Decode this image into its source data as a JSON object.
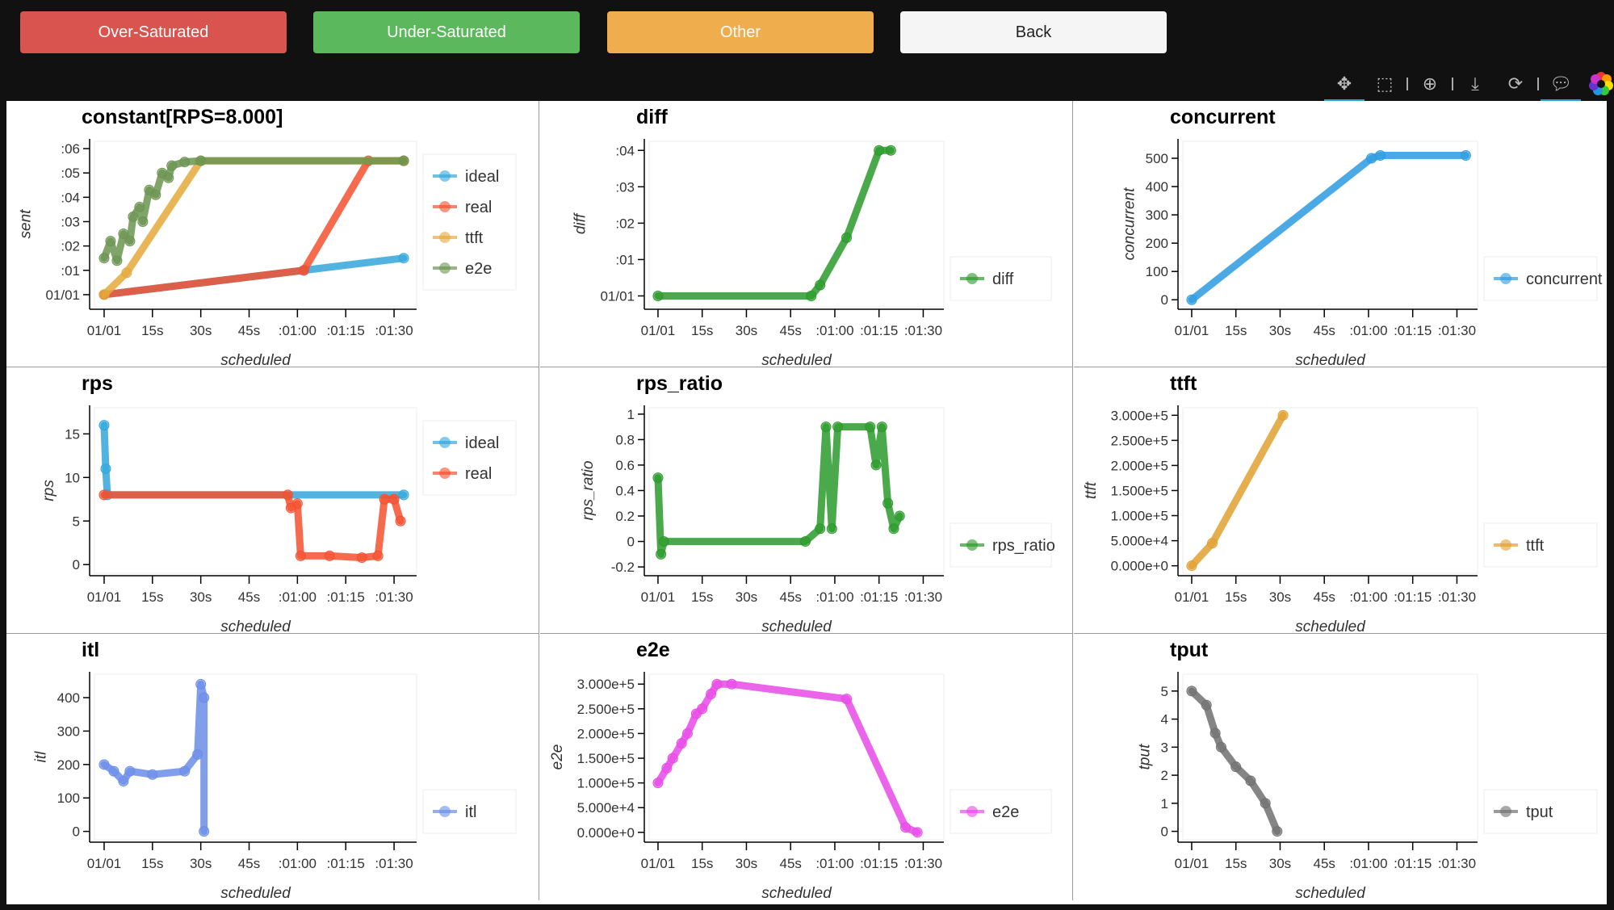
{
  "buttons": {
    "over": {
      "label": "Over-Saturated",
      "color": "#d9534f"
    },
    "under": {
      "label": "Under-Saturated",
      "color": "#5cb85c"
    },
    "other": {
      "label": "Other",
      "color": "#f0ad4e"
    },
    "back": {
      "label": "Back",
      "color": "#f5f5f5"
    }
  },
  "toolbar": [
    "pan-icon",
    "box-zoom-icon",
    "wheel-zoom-icon",
    "save-icon",
    "reset-icon",
    "hover-icon",
    "bokeh-logo"
  ],
  "chart_data": [
    {
      "type": "line",
      "title": "constant[RPS=8.000]",
      "xlabel": "scheduled",
      "ylabel": "sent",
      "ylim": [
        -0.5,
        6.3
      ],
      "yticks": [
        [
          0,
          "01/01"
        ],
        [
          1,
          ":01"
        ],
        [
          2,
          ":02"
        ],
        [
          3,
          ":03"
        ],
        [
          4,
          ":04"
        ],
        [
          5,
          ":05"
        ],
        [
          6,
          ":06"
        ]
      ],
      "series": [
        {
          "name": "ideal",
          "color": "#34a6dc",
          "points": [
            [
              0,
              0
            ],
            [
              62,
              1
            ],
            [
              93,
              1.5
            ]
          ]
        },
        {
          "name": "real",
          "color": "#f4502f",
          "points": [
            [
              0,
              0
            ],
            [
              62,
              1
            ],
            [
              82,
              5.5
            ],
            [
              93,
              5.5
            ]
          ]
        },
        {
          "name": "ttft",
          "color": "#e5a93a",
          "points": [
            [
              0,
              0
            ],
            [
              7,
              0.9
            ],
            [
              30,
              5.5
            ],
            [
              93,
              5.5
            ]
          ]
        },
        {
          "name": "e2e",
          "color": "#6b9450",
          "points": [
            [
              0,
              1.5
            ],
            [
              2,
              2.2
            ],
            [
              4,
              1.4
            ],
            [
              6,
              2.5
            ],
            [
              8,
              2.2
            ],
            [
              9,
              3.2
            ],
            [
              11,
              3.6
            ],
            [
              12,
              3.0
            ],
            [
              14,
              4.3
            ],
            [
              16,
              4.1
            ],
            [
              18,
              5.0
            ],
            [
              20,
              4.8
            ],
            [
              21,
              5.3
            ],
            [
              25,
              5.45
            ],
            [
              30,
              5.5
            ],
            [
              93,
              5.5
            ]
          ]
        }
      ]
    },
    {
      "type": "line",
      "title": "diff",
      "xlabel": "scheduled",
      "ylabel": "diff",
      "ylim": [
        -0.3,
        4.25
      ],
      "yticks": [
        [
          0,
          "01/01"
        ],
        [
          1,
          ":01"
        ],
        [
          2,
          ":02"
        ],
        [
          3,
          ":03"
        ],
        [
          4,
          ":04"
        ]
      ],
      "series": [
        {
          "name": "diff",
          "color": "#2a9a2a",
          "points": [
            [
              0,
              0
            ],
            [
              52,
              0
            ],
            [
              55,
              0.3
            ],
            [
              64,
              1.6
            ],
            [
              75,
              4
            ],
            [
              79,
              4
            ]
          ]
        }
      ]
    },
    {
      "type": "line",
      "title": "concurrent",
      "xlabel": "scheduled",
      "ylabel": "concurrent",
      "ylim": [
        -25,
        560
      ],
      "yticks": [
        [
          0,
          "0"
        ],
        [
          100,
          "100"
        ],
        [
          200,
          "200"
        ],
        [
          300,
          "300"
        ],
        [
          400,
          "400"
        ],
        [
          500,
          "500"
        ]
      ],
      "series": [
        {
          "name": "concurrent",
          "color": "#2c9be0",
          "points": [
            [
              0,
              0
            ],
            [
              61,
              500
            ],
            [
              64,
              510
            ],
            [
              93,
              510
            ]
          ]
        }
      ]
    },
    {
      "type": "line",
      "title": "rps",
      "xlabel": "scheduled",
      "ylabel": "rps",
      "ylim": [
        -1,
        18
      ],
      "yticks": [
        [
          0,
          "0"
        ],
        [
          5,
          "5"
        ],
        [
          10,
          "10"
        ],
        [
          15,
          "15"
        ]
      ],
      "series": [
        {
          "name": "ideal",
          "color": "#34a6dc",
          "points": [
            [
              0,
              16
            ],
            [
              0.5,
              11
            ],
            [
              1,
              8
            ],
            [
              93,
              8
            ]
          ]
        },
        {
          "name": "real",
          "color": "#f4502f",
          "points": [
            [
              0,
              8
            ],
            [
              57,
              8
            ],
            [
              58,
              6.5
            ],
            [
              60,
              7
            ],
            [
              61,
              1
            ],
            [
              70,
              1
            ],
            [
              80,
              0.8
            ],
            [
              85,
              1
            ],
            [
              87,
              7.5
            ],
            [
              90,
              7.5
            ],
            [
              92,
              5
            ]
          ]
        }
      ]
    },
    {
      "type": "line",
      "title": "rps_ratio",
      "xlabel": "scheduled",
      "ylabel": "rps_ratio",
      "ylim": [
        -0.25,
        1.05
      ],
      "yticks": [
        [
          -0.2,
          "-0.2"
        ],
        [
          0,
          "0"
        ],
        [
          0.2,
          "0.2"
        ],
        [
          0.4,
          "0.4"
        ],
        [
          0.6,
          "0.6"
        ],
        [
          0.8,
          "0.8"
        ],
        [
          1,
          "1"
        ]
      ],
      "series": [
        {
          "name": "rps_ratio",
          "color": "#2a9a2a",
          "points": [
            [
              0,
              0.5
            ],
            [
              1,
              -0.1
            ],
            [
              2,
              0
            ],
            [
              50,
              0
            ],
            [
              55,
              0.1
            ],
            [
              57,
              0.9
            ],
            [
              59,
              0.1
            ],
            [
              61,
              0.9
            ],
            [
              72,
              0.9
            ],
            [
              74,
              0.6
            ],
            [
              76,
              0.9
            ],
            [
              78,
              0.3
            ],
            [
              80,
              0.1
            ],
            [
              82,
              0.2
            ]
          ]
        }
      ]
    },
    {
      "type": "line",
      "title": "ttft",
      "xlabel": "scheduled",
      "ylabel": "ttft",
      "ylim": [
        -15000,
        315000
      ],
      "yticks": [
        [
          0,
          "0.000e+0"
        ],
        [
          50000,
          "5.000e+4"
        ],
        [
          100000,
          "1.000e+5"
        ],
        [
          150000,
          "1.500e+5"
        ],
        [
          200000,
          "2.000e+5"
        ],
        [
          250000,
          "2.500e+5"
        ],
        [
          300000,
          "3.000e+5"
        ]
      ],
      "series": [
        {
          "name": "ttft",
          "color": "#e0a030",
          "points": [
            [
              0,
              0
            ],
            [
              7,
              45000
            ],
            [
              31,
              300000
            ]
          ]
        }
      ]
    },
    {
      "type": "line",
      "title": "itl",
      "xlabel": "scheduled",
      "ylabel": "itl",
      "ylim": [
        -25,
        470
      ],
      "yticks": [
        [
          0,
          "0"
        ],
        [
          100,
          "100"
        ],
        [
          200,
          "200"
        ],
        [
          300,
          "300"
        ],
        [
          400,
          "400"
        ]
      ],
      "series": [
        {
          "name": "itl",
          "color": "#6b8de8",
          "points": [
            [
              0,
              200
            ],
            [
              3,
              180
            ],
            [
              6,
              150
            ],
            [
              8,
              180
            ],
            [
              15,
              170
            ],
            [
              25,
              180
            ],
            [
              29,
              230
            ],
            [
              30,
              440
            ],
            [
              31,
              400
            ],
            [
              31,
              0
            ]
          ]
        }
      ]
    },
    {
      "type": "line",
      "title": "e2e",
      "xlabel": "scheduled",
      "ylabel": "e2e",
      "ylim": [
        -15000,
        320000
      ],
      "yticks": [
        [
          0,
          "0.000e+0"
        ],
        [
          50000,
          "5.000e+4"
        ],
        [
          100000,
          "1.000e+5"
        ],
        [
          150000,
          "1.500e+5"
        ],
        [
          200000,
          "2.000e+5"
        ],
        [
          250000,
          "2.500e+5"
        ],
        [
          300000,
          "3.000e+5"
        ]
      ],
      "series": [
        {
          "name": "e2e",
          "color": "#e84ae8",
          "points": [
            [
              0,
              100000
            ],
            [
              3,
              130000
            ],
            [
              5,
              150000
            ],
            [
              8,
              180000
            ],
            [
              10,
              200000
            ],
            [
              13,
              240000
            ],
            [
              15,
              250000
            ],
            [
              18,
              280000
            ],
            [
              20,
              300000
            ],
            [
              25,
              300000
            ],
            [
              64,
              270000
            ],
            [
              84,
              10000
            ],
            [
              88,
              0
            ]
          ]
        }
      ]
    },
    {
      "type": "line",
      "title": "tput",
      "xlabel": "scheduled",
      "ylabel": "tput",
      "ylim": [
        -0.3,
        5.6
      ],
      "yticks": [
        [
          0,
          "0"
        ],
        [
          1,
          "1"
        ],
        [
          2,
          "2"
        ],
        [
          3,
          "3"
        ],
        [
          4,
          "4"
        ],
        [
          5,
          "5"
        ]
      ],
      "series": [
        {
          "name": "tput",
          "color": "#707070",
          "points": [
            [
              0,
              5
            ],
            [
              5,
              4.5
            ],
            [
              8,
              3.5
            ],
            [
              10,
              3
            ],
            [
              15,
              2.3
            ],
            [
              20,
              1.8
            ],
            [
              25,
              1
            ],
            [
              29,
              0
            ]
          ]
        }
      ]
    }
  ],
  "xticks": [
    [
      0,
      "01/01"
    ],
    [
      15,
      "15s"
    ],
    [
      30,
      "30s"
    ],
    [
      45,
      "45s"
    ],
    [
      60,
      ":01:00"
    ],
    [
      75,
      ":01:15"
    ],
    [
      90,
      ":01:30"
    ]
  ],
  "xlim": [
    -3,
    97
  ]
}
